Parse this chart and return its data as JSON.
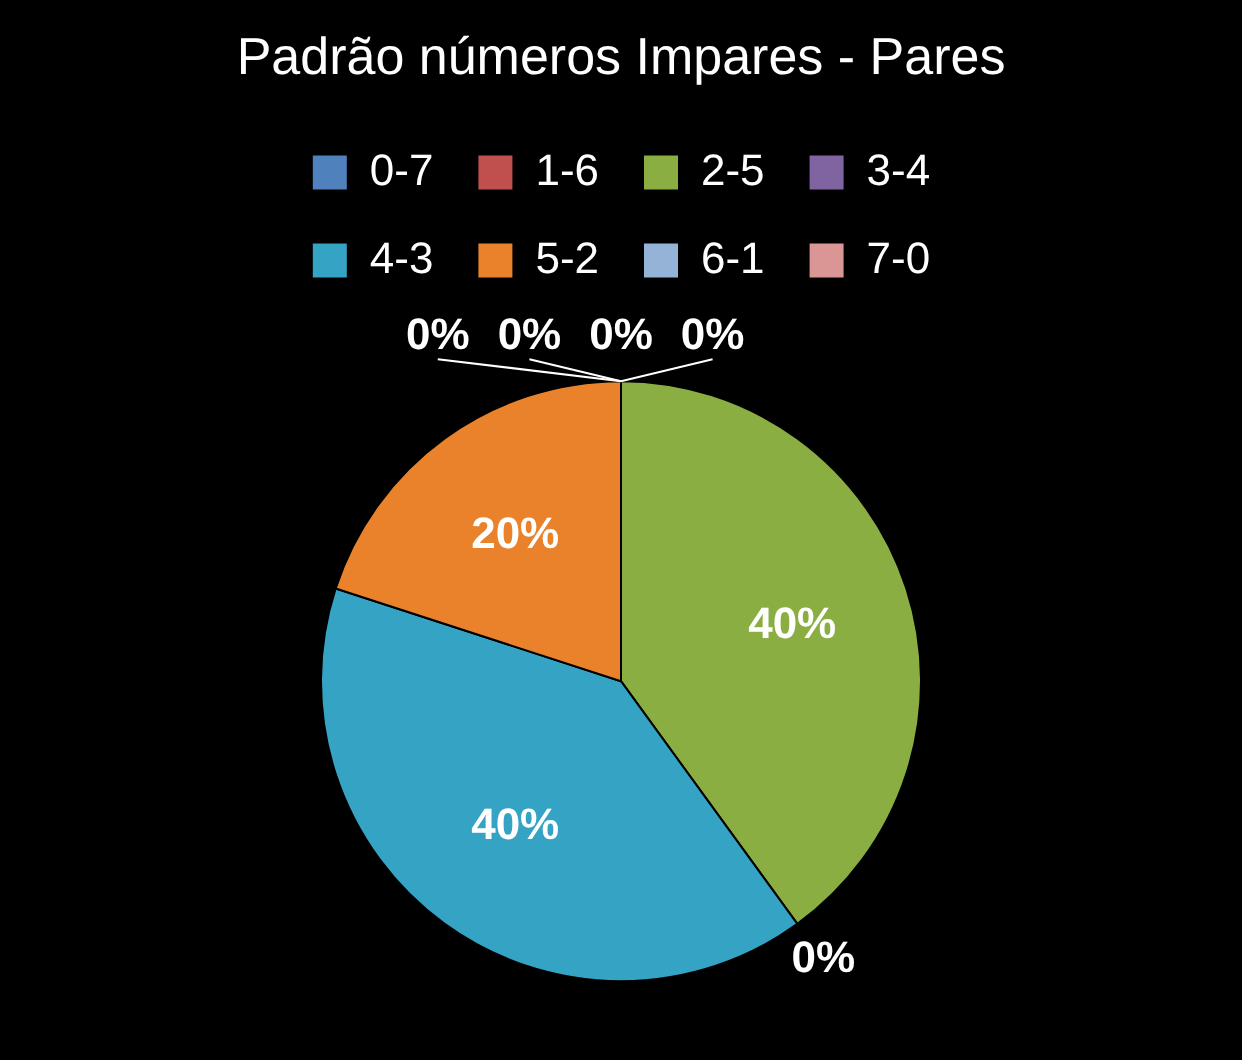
{
  "chart_data": {
    "type": "pie",
    "title": "Padrão números Impares - Pares",
    "categories": [
      "0-7",
      "1-6",
      "2-5",
      "3-4",
      "4-3",
      "5-2",
      "6-1",
      "7-0"
    ],
    "values": [
      0,
      0,
      40,
      0,
      40,
      20,
      0,
      0
    ],
    "colors": [
      "#4f81bd",
      "#c0504d",
      "#8aae42",
      "#8064a2",
      "#35a3c4",
      "#e9822a",
      "#95b3d7",
      "#d99694"
    ],
    "value_labels": [
      "0%",
      "0%",
      "40%",
      "0%",
      "40%",
      "20%",
      "0%",
      "0%"
    ],
    "legend": "top"
  }
}
